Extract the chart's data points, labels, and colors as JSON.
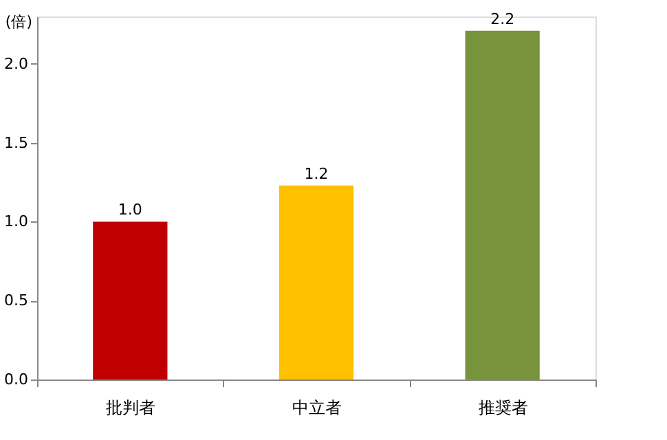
{
  "chart_data": {
    "type": "bar",
    "ylabel": "(倍)",
    "categories": [
      "批判者",
      "中立者",
      "推奨者"
    ],
    "values": [
      1.0,
      1.23,
      2.21
    ],
    "colors": [
      "#c00000",
      "#ffc000",
      "#77933c"
    ],
    "value_labels": [
      "1.0",
      "1.2",
      "2.2"
    ],
    "ylim": [
      0,
      2.3
    ],
    "yticks": [
      {
        "value": 0,
        "label": "0.0"
      },
      {
        "value": 0.5,
        "label": "0.5"
      },
      {
        "value": 1,
        "label": "1.0"
      },
      {
        "value": 1.5,
        "label": "1.5"
      },
      {
        "value": 2,
        "label": "2.0"
      }
    ],
    "grid": false,
    "legend": false
  }
}
